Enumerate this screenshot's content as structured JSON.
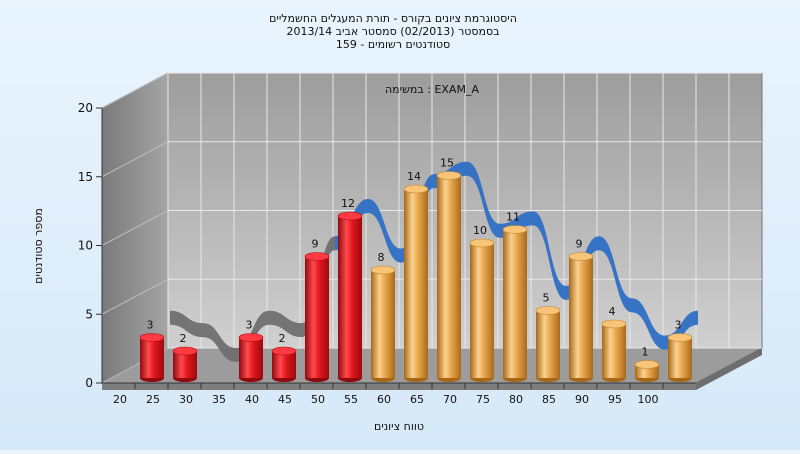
{
  "chart_data": {
    "type": "bar",
    "title_lines": [
      "היסטוגרמת ציונים בקורס - תורת המעגלים החשמליים",
      "בסמסטר  (02/2013)  סמסטר אביב 2013/14",
      "סטודנטים רשומים - 159"
    ],
    "annotation": "במשימה : EXAM_A",
    "xlabel": "טווח ציונים",
    "ylabel": "מספר סטודנטים",
    "ylim": [
      0,
      20
    ],
    "yticks": [
      0,
      5,
      10,
      15,
      20
    ],
    "x_tick_labels": [
      "20",
      "25",
      "30",
      "35",
      "40",
      "45",
      "50",
      "55",
      "60",
      "65",
      "70",
      "75",
      "80",
      "85",
      "90",
      "95",
      "100"
    ],
    "categories": [
      "20",
      "25",
      "30",
      "35",
      "40",
      "45",
      "50",
      "55",
      "60",
      "65",
      "70",
      "75",
      "80",
      "85",
      "90",
      "95",
      "100"
    ],
    "values": [
      3,
      2,
      0,
      3,
      2,
      9,
      12,
      8,
      14,
      15,
      10,
      11,
      5,
      9,
      4,
      1,
      3
    ],
    "bar_group": [
      "fail",
      "fail",
      "fail",
      "fail",
      "fail",
      "fail",
      "fail",
      "pass",
      "pass",
      "pass",
      "pass",
      "pass",
      "pass",
      "pass",
      "pass",
      "pass",
      "pass"
    ],
    "colors": {
      "fail": "#e0161c",
      "pass": "#e6a54a",
      "trend_low": "#6f6f6f",
      "trend": "#2f6fc4",
      "plot_back": "#b5b5b5",
      "plot_side": "#8a8a8a",
      "plot_floor": "#9a9a9a"
    },
    "grid": true,
    "style": "3d-cylinder"
  }
}
